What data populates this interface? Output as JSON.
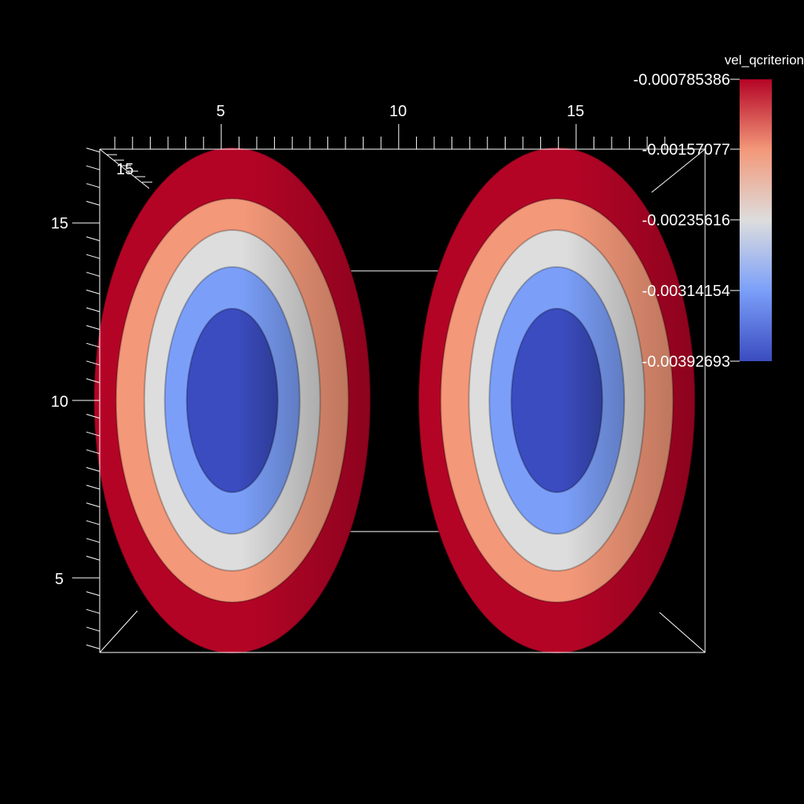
{
  "chart_data": {
    "type": "contour",
    "render": "3d-isosurface",
    "scalar": "vel_qcriterion",
    "x_ticks": [
      "5",
      "10",
      "15"
    ],
    "y_ticks": [
      "15",
      "10",
      "5"
    ],
    "z_ticks": [
      "15"
    ],
    "colorbar": {
      "title": "vel_qcriterion",
      "labels": [
        "-0.000785386",
        "-0.00157077",
        "-0.00235616",
        "-0.00314154",
        "-0.00392693"
      ],
      "min": -0.00392693,
      "max": -0.000785386,
      "colors": [
        "#b40426",
        "#f39879",
        "#dddddd",
        "#7b9ff9",
        "#3b4cc0"
      ]
    },
    "isosurface_levels": [
      -0.000785386,
      -0.00157077,
      -0.00235616,
      -0.00314154,
      -0.00392693
    ],
    "vortex_cores": [
      {
        "name": "left",
        "x": 5.0,
        "y": 10.0
      },
      {
        "name": "right",
        "x": 14.5,
        "y": 10.0
      }
    ]
  }
}
